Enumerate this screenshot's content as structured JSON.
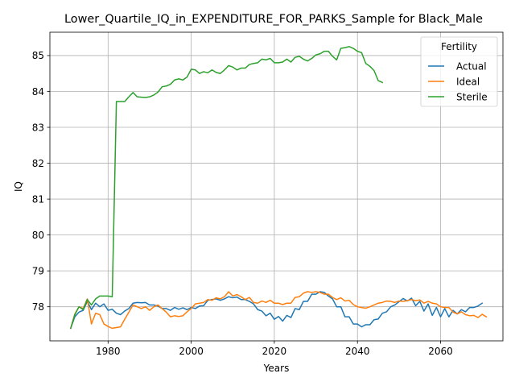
{
  "chart_data": {
    "type": "line",
    "title": "Lower_Quartile_IQ_in_EXPENDITURE_FOR_PARKS_Sample for Black_Male",
    "xlabel": "Years",
    "ylabel": "IQ",
    "xlim": [
      1966,
      2075
    ],
    "ylim": [
      77.05,
      85.65
    ],
    "xticks": [
      1980,
      2000,
      2020,
      2040,
      2060
    ],
    "yticks": [
      78,
      79,
      80,
      81,
      82,
      83,
      84,
      85
    ],
    "grid": true,
    "legend": {
      "title": "Fertility",
      "placement": "upper-right"
    },
    "series": [
      {
        "name": "Actual",
        "color": "#1f77b4",
        "points": [
          [
            1971,
            77.4
          ],
          [
            1972,
            77.72
          ],
          [
            1973,
            77.85
          ],
          [
            1974,
            77.9
          ],
          [
            1975,
            78.15
          ],
          [
            1976,
            77.92
          ],
          [
            1977,
            78.1
          ],
          [
            1978,
            78.0
          ],
          [
            1979,
            78.08
          ],
          [
            1980,
            77.9
          ],
          [
            1981,
            77.93
          ],
          [
            1982,
            77.82
          ],
          [
            1983,
            77.78
          ],
          [
            1984,
            77.88
          ],
          [
            1985,
            77.95
          ],
          [
            1986,
            78.1
          ],
          [
            1987,
            78.12
          ],
          [
            1988,
            78.11
          ],
          [
            1989,
            78.12
          ],
          [
            1990,
            78.05
          ],
          [
            1991,
            78.05
          ],
          [
            1992,
            78.02
          ],
          [
            1993,
            77.95
          ],
          [
            1994,
            77.95
          ],
          [
            1995,
            77.9
          ],
          [
            1996,
            77.98
          ],
          [
            1997,
            77.93
          ],
          [
            1998,
            77.97
          ],
          [
            1999,
            77.92
          ],
          [
            2000,
            77.98
          ],
          [
            2001,
            77.95
          ],
          [
            2002,
            78.02
          ],
          [
            2003,
            78.03
          ],
          [
            2004,
            78.18
          ],
          [
            2005,
            78.2
          ],
          [
            2006,
            78.22
          ],
          [
            2007,
            78.18
          ],
          [
            2008,
            78.22
          ],
          [
            2009,
            78.28
          ],
          [
            2010,
            78.25
          ],
          [
            2011,
            78.27
          ],
          [
            2012,
            78.2
          ],
          [
            2013,
            78.2
          ],
          [
            2014,
            78.15
          ],
          [
            2015,
            78.08
          ],
          [
            2016,
            77.92
          ],
          [
            2017,
            77.88
          ],
          [
            2018,
            77.75
          ],
          [
            2019,
            77.82
          ],
          [
            2020,
            77.65
          ],
          [
            2021,
            77.73
          ],
          [
            2022,
            77.6
          ],
          [
            2023,
            77.76
          ],
          [
            2024,
            77.7
          ],
          [
            2025,
            77.95
          ],
          [
            2026,
            77.92
          ],
          [
            2027,
            78.15
          ],
          [
            2028,
            78.15
          ],
          [
            2029,
            78.35
          ],
          [
            2030,
            78.35
          ],
          [
            2031,
            78.42
          ],
          [
            2032,
            78.4
          ],
          [
            2033,
            78.3
          ],
          [
            2034,
            78.22
          ],
          [
            2035,
            78.0
          ],
          [
            2036,
            78.0
          ],
          [
            2037,
            77.72
          ],
          [
            2038,
            77.72
          ],
          [
            2039,
            77.52
          ],
          [
            2040,
            77.52
          ],
          [
            2041,
            77.44
          ],
          [
            2042,
            77.5
          ],
          [
            2043,
            77.5
          ],
          [
            2044,
            77.64
          ],
          [
            2045,
            77.66
          ],
          [
            2046,
            77.82
          ],
          [
            2047,
            77.86
          ],
          [
            2048,
            78.0
          ],
          [
            2049,
            78.05
          ],
          [
            2050,
            78.14
          ],
          [
            2051,
            78.23
          ],
          [
            2052,
            78.16
          ],
          [
            2053,
            78.24
          ],
          [
            2054,
            78.03
          ],
          [
            2055,
            78.15
          ],
          [
            2056,
            77.88
          ],
          [
            2057,
            78.08
          ],
          [
            2058,
            77.76
          ],
          [
            2059,
            77.98
          ],
          [
            2060,
            77.72
          ],
          [
            2061,
            77.95
          ],
          [
            2062,
            77.72
          ],
          [
            2063,
            77.9
          ],
          [
            2064,
            77.8
          ],
          [
            2065,
            77.92
          ],
          [
            2066,
            77.86
          ],
          [
            2067,
            77.98
          ],
          [
            2068,
            77.98
          ],
          [
            2069,
            78.02
          ],
          [
            2070,
            78.1
          ]
        ]
      },
      {
        "name": "Ideal",
        "color": "#ff7f0e",
        "points": [
          [
            1971,
            77.4
          ],
          [
            1972,
            77.8
          ],
          [
            1973,
            78.0
          ],
          [
            1974,
            77.95
          ],
          [
            1975,
            78.22
          ],
          [
            1976,
            77.52
          ],
          [
            1977,
            77.82
          ],
          [
            1978,
            77.78
          ],
          [
            1979,
            77.52
          ],
          [
            1980,
            77.45
          ],
          [
            1981,
            77.4
          ],
          [
            1982,
            77.42
          ],
          [
            1983,
            77.44
          ],
          [
            1984,
            77.65
          ],
          [
            1985,
            77.85
          ],
          [
            1986,
            78.05
          ],
          [
            1987,
            78.0
          ],
          [
            1988,
            77.95
          ],
          [
            1989,
            78.0
          ],
          [
            1990,
            77.9
          ],
          [
            1991,
            78.0
          ],
          [
            1992,
            78.05
          ],
          [
            1993,
            77.95
          ],
          [
            1994,
            77.85
          ],
          [
            1995,
            77.72
          ],
          [
            1996,
            77.75
          ],
          [
            1997,
            77.73
          ],
          [
            1998,
            77.75
          ],
          [
            1999,
            77.86
          ],
          [
            2000,
            77.95
          ],
          [
            2001,
            78.08
          ],
          [
            2002,
            78.1
          ],
          [
            2003,
            78.12
          ],
          [
            2004,
            78.2
          ],
          [
            2005,
            78.18
          ],
          [
            2006,
            78.25
          ],
          [
            2007,
            78.22
          ],
          [
            2008,
            78.28
          ],
          [
            2009,
            78.42
          ],
          [
            2010,
            78.3
          ],
          [
            2011,
            78.34
          ],
          [
            2012,
            78.28
          ],
          [
            2013,
            78.2
          ],
          [
            2014,
            78.26
          ],
          [
            2015,
            78.12
          ],
          [
            2016,
            78.1
          ],
          [
            2017,
            78.16
          ],
          [
            2018,
            78.12
          ],
          [
            2019,
            78.18
          ],
          [
            2020,
            78.1
          ],
          [
            2021,
            78.1
          ],
          [
            2022,
            78.06
          ],
          [
            2023,
            78.1
          ],
          [
            2024,
            78.1
          ],
          [
            2025,
            78.26
          ],
          [
            2026,
            78.28
          ],
          [
            2027,
            78.38
          ],
          [
            2028,
            78.42
          ],
          [
            2029,
            78.4
          ],
          [
            2030,
            78.42
          ],
          [
            2031,
            78.4
          ],
          [
            2032,
            78.35
          ],
          [
            2033,
            78.35
          ],
          [
            2034,
            78.26
          ],
          [
            2035,
            78.2
          ],
          [
            2036,
            78.25
          ],
          [
            2037,
            78.16
          ],
          [
            2038,
            78.18
          ],
          [
            2039,
            78.06
          ],
          [
            2040,
            78.0
          ],
          [
            2041,
            77.98
          ],
          [
            2042,
            77.96
          ],
          [
            2043,
            78.0
          ],
          [
            2044,
            78.05
          ],
          [
            2045,
            78.1
          ],
          [
            2046,
            78.12
          ],
          [
            2047,
            78.16
          ],
          [
            2048,
            78.15
          ],
          [
            2049,
            78.12
          ],
          [
            2050,
            78.16
          ],
          [
            2051,
            78.15
          ],
          [
            2052,
            78.17
          ],
          [
            2053,
            78.2
          ],
          [
            2054,
            78.17
          ],
          [
            2055,
            78.19
          ],
          [
            2056,
            78.1
          ],
          [
            2057,
            78.15
          ],
          [
            2058,
            78.1
          ],
          [
            2059,
            78.08
          ],
          [
            2060,
            78.0
          ],
          [
            2061,
            77.98
          ],
          [
            2062,
            77.98
          ],
          [
            2063,
            77.85
          ],
          [
            2064,
            77.8
          ],
          [
            2065,
            77.86
          ],
          [
            2066,
            77.78
          ],
          [
            2067,
            77.75
          ],
          [
            2068,
            77.76
          ],
          [
            2069,
            77.7
          ],
          [
            2070,
            77.79
          ],
          [
            2071,
            77.72
          ]
        ]
      },
      {
        "name": "Sterile",
        "color": "#2ca02c",
        "points": [
          [
            1971,
            77.4
          ],
          [
            1972,
            77.78
          ],
          [
            1973,
            78.0
          ],
          [
            1974,
            77.92
          ],
          [
            1975,
            78.2
          ],
          [
            1976,
            78.05
          ],
          [
            1977,
            78.22
          ],
          [
            1978,
            78.3
          ],
          [
            1979,
            78.3
          ],
          [
            1980,
            78.3
          ],
          [
            1981,
            78.28
          ],
          [
            1982,
            83.72
          ],
          [
            1983,
            83.72
          ],
          [
            1984,
            83.72
          ],
          [
            1985,
            83.85
          ],
          [
            1986,
            83.97
          ],
          [
            1987,
            83.85
          ],
          [
            1988,
            83.84
          ],
          [
            1989,
            83.83
          ],
          [
            1990,
            83.85
          ],
          [
            1991,
            83.9
          ],
          [
            1992,
            83.98
          ],
          [
            1993,
            84.13
          ],
          [
            1994,
            84.15
          ],
          [
            1995,
            84.2
          ],
          [
            1996,
            84.32
          ],
          [
            1997,
            84.35
          ],
          [
            1998,
            84.32
          ],
          [
            1999,
            84.4
          ],
          [
            2000,
            84.62
          ],
          [
            2001,
            84.6
          ],
          [
            2002,
            84.5
          ],
          [
            2003,
            84.55
          ],
          [
            2004,
            84.52
          ],
          [
            2005,
            84.6
          ],
          [
            2006,
            84.53
          ],
          [
            2007,
            84.5
          ],
          [
            2008,
            84.6
          ],
          [
            2009,
            84.72
          ],
          [
            2010,
            84.68
          ],
          [
            2011,
            84.6
          ],
          [
            2012,
            84.65
          ],
          [
            2013,
            84.65
          ],
          [
            2014,
            84.75
          ],
          [
            2015,
            84.78
          ],
          [
            2016,
            84.8
          ],
          [
            2017,
            84.9
          ],
          [
            2018,
            84.88
          ],
          [
            2019,
            84.92
          ],
          [
            2020,
            84.8
          ],
          [
            2021,
            84.8
          ],
          [
            2022,
            84.82
          ],
          [
            2023,
            84.9
          ],
          [
            2024,
            84.82
          ],
          [
            2025,
            84.95
          ],
          [
            2026,
            84.98
          ],
          [
            2027,
            84.9
          ],
          [
            2028,
            84.85
          ],
          [
            2029,
            84.92
          ],
          [
            2030,
            85.02
          ],
          [
            2031,
            85.05
          ],
          [
            2032,
            85.12
          ],
          [
            2033,
            85.12
          ],
          [
            2034,
            84.98
          ],
          [
            2035,
            84.88
          ],
          [
            2036,
            85.2
          ],
          [
            2037,
            85.22
          ],
          [
            2038,
            85.25
          ],
          [
            2039,
            85.2
          ],
          [
            2040,
            85.12
          ],
          [
            2041,
            85.08
          ],
          [
            2042,
            84.78
          ],
          [
            2043,
            84.7
          ],
          [
            2044,
            84.58
          ],
          [
            2045,
            84.3
          ],
          [
            2046,
            84.25
          ]
        ]
      }
    ]
  }
}
